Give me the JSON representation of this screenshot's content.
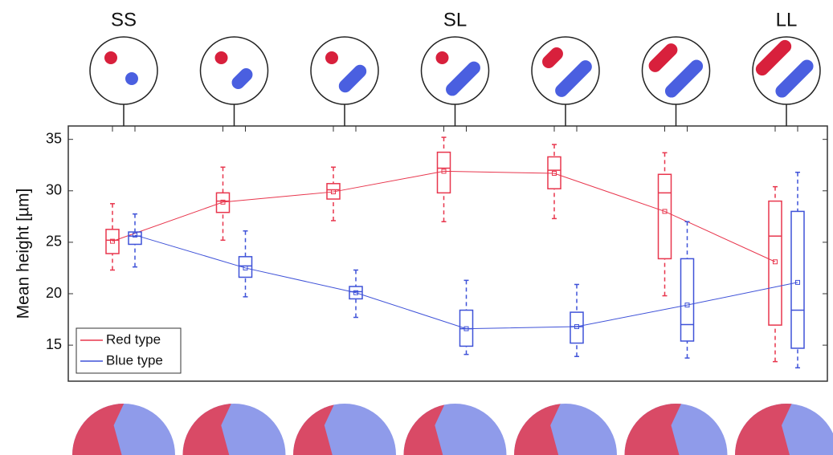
{
  "chart_data": {
    "type": "box",
    "y_label": "Mean height [µm]",
    "categories": [
      "SS",
      null,
      null,
      "SL",
      null,
      null,
      "LL"
    ],
    "ylim": [
      11.5,
      36.3
    ],
    "yticks": [
      15,
      20,
      25,
      30,
      35
    ],
    "legend": "lower left",
    "series": [
      {
        "name": "Red type",
        "color": "#e8364d",
        "min": [
          22.3,
          25.2,
          27.1,
          27.0,
          27.3,
          19.8,
          13.4
        ],
        "q1": [
          23.9,
          27.9,
          29.2,
          29.8,
          30.2,
          23.4,
          16.95
        ],
        "median": [
          25.2,
          29.0,
          30.1,
          32.2,
          32.0,
          29.8,
          25.6
        ],
        "q3": [
          26.25,
          29.8,
          30.7,
          33.75,
          33.3,
          31.6,
          29.0
        ],
        "max": [
          28.75,
          32.3,
          32.3,
          35.2,
          34.5,
          33.7,
          30.4
        ],
        "mean": [
          25.1,
          28.9,
          29.9,
          31.9,
          31.7,
          28.0,
          23.1
        ]
      },
      {
        "name": "Blue type",
        "color": "#3f52d8",
        "min": [
          22.6,
          19.7,
          17.7,
          14.1,
          13.9,
          13.75,
          12.8
        ],
        "q1": [
          24.8,
          21.6,
          19.5,
          14.9,
          15.2,
          15.4,
          14.7
        ],
        "median": [
          25.6,
          22.7,
          20.2,
          16.6,
          16.8,
          17.0,
          18.4
        ],
        "q3": [
          26.0,
          23.6,
          20.7,
          18.4,
          18.2,
          23.4,
          28.0
        ],
        "max": [
          27.75,
          26.1,
          22.3,
          21.3,
          20.9,
          27.0,
          31.8
        ],
        "mean": [
          25.7,
          22.5,
          20.1,
          16.6,
          16.8,
          18.9,
          21.1
        ]
      }
    ]
  }
}
